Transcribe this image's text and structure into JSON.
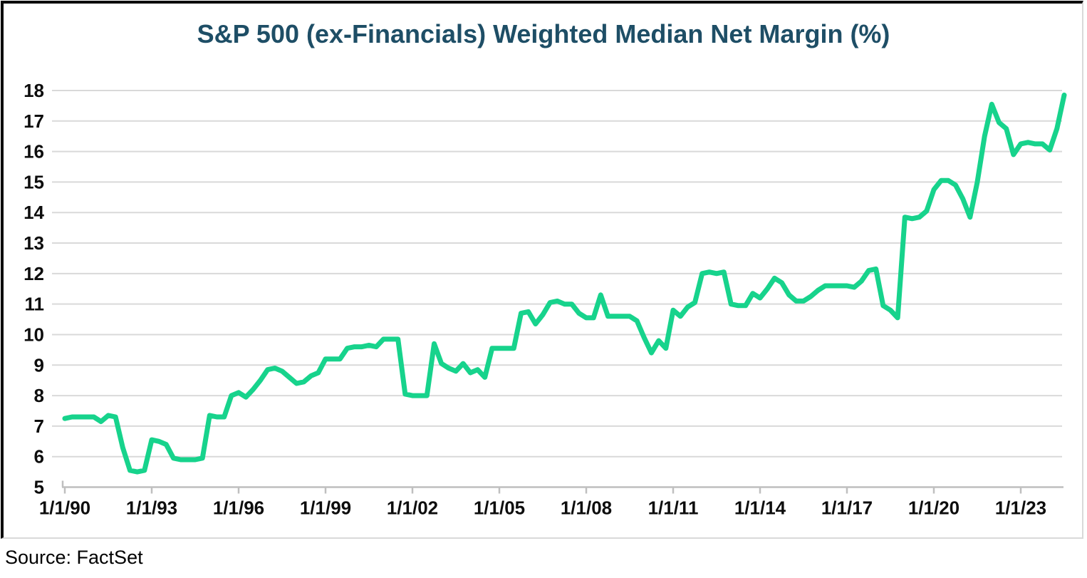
{
  "header": {
    "title": "S&P 500 (ex-Financials) Weighted Median Net Margin (%)"
  },
  "footer": {
    "source": "Source: FactSet"
  },
  "colors": {
    "line": "#17d38c",
    "title": "#1e4e66",
    "grid": "#d9d9d9",
    "axis": "#bfbfbf",
    "tick_label": "#0d0d0d",
    "frame_dark": "#0b0b0b",
    "frame_light": "#d9d9d9"
  },
  "chart_data": {
    "type": "line",
    "title": "S&P 500 (ex-Financials) Weighted Median Net Margin (%)",
    "series_name": "Weighted Median Net Margin (%)",
    "xlabel": "",
    "ylabel": "",
    "legend": "none",
    "grid": "horizontal",
    "x_unit": "quarterly dates",
    "x_start": 1990.0,
    "x_step_years": 0.25,
    "x_end": 2024.5,
    "xlim": [
      1990.0,
      2024.5
    ],
    "ylim": [
      5,
      18
    ],
    "y_ticks": [
      5,
      6,
      7,
      8,
      9,
      10,
      11,
      12,
      13,
      14,
      15,
      16,
      17,
      18
    ],
    "x_tick_years": [
      1990,
      1993,
      1996,
      1999,
      2002,
      2005,
      2008,
      2011,
      2014,
      2017,
      2020,
      2023
    ],
    "x_tick_labels": [
      "1/1/90",
      "1/1/93",
      "1/1/96",
      "1/1/99",
      "1/1/02",
      "1/1/05",
      "1/1/08",
      "1/1/11",
      "1/1/14",
      "1/1/17",
      "1/1/20",
      "1/1/23"
    ],
    "values": [
      7.25,
      7.3,
      7.3,
      7.3,
      7.3,
      7.15,
      7.35,
      7.3,
      6.3,
      5.55,
      5.5,
      5.55,
      6.55,
      6.5,
      6.4,
      5.95,
      5.9,
      5.9,
      5.9,
      5.95,
      7.35,
      7.3,
      7.3,
      8.0,
      8.1,
      7.95,
      8.2,
      8.5,
      8.85,
      8.9,
      8.8,
      8.6,
      8.4,
      8.45,
      8.65,
      8.75,
      9.2,
      9.2,
      9.2,
      9.55,
      9.6,
      9.6,
      9.65,
      9.6,
      9.85,
      9.85,
      9.85,
      8.05,
      8.0,
      8.0,
      8.0,
      9.7,
      9.05,
      8.9,
      8.8,
      9.05,
      8.75,
      8.85,
      8.6,
      9.55,
      9.55,
      9.55,
      9.55,
      10.7,
      10.75,
      10.35,
      10.65,
      11.05,
      11.1,
      11.0,
      11.0,
      10.7,
      10.55,
      10.55,
      11.3,
      10.6,
      10.6,
      10.6,
      10.6,
      10.45,
      9.9,
      9.4,
      9.8,
      9.55,
      10.8,
      10.6,
      10.9,
      11.05,
      12.0,
      12.05,
      12.0,
      12.05,
      11.0,
      10.95,
      10.95,
      11.35,
      11.2,
      11.5,
      11.85,
      11.7,
      11.3,
      11.1,
      11.1,
      11.25,
      11.45,
      11.6,
      11.6,
      11.6,
      11.6,
      11.55,
      11.75,
      12.1,
      12.15,
      10.95,
      10.8,
      10.55,
      13.85,
      13.8,
      13.85,
      14.05,
      14.75,
      15.05,
      15.05,
      14.9,
      14.45,
      13.85,
      15.0,
      16.5,
      17.55,
      16.95,
      16.75,
      15.9,
      16.25,
      16.3,
      16.25,
      16.25,
      16.05,
      16.75,
      17.85
    ]
  }
}
